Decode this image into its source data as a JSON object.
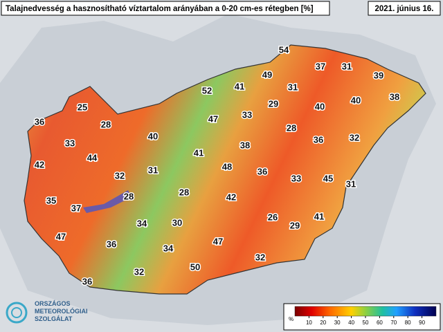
{
  "title": "Talajnedvesség a hasznosítható víztartalom arányában a 0-20 cm-es rétegben [%]",
  "date": "2021. június 16.",
  "stations": [
    54,
    37,
    31,
    39,
    49,
    41,
    31,
    52,
    40,
    38,
    29,
    40,
    25,
    33,
    47,
    36,
    28,
    28,
    40,
    36,
    32,
    33,
    38,
    41,
    44,
    42,
    48,
    31,
    32,
    36,
    33,
    45,
    31,
    28,
    42,
    35,
    28,
    37,
    26,
    41,
    29,
    34,
    30,
    47,
    36,
    47,
    34,
    32,
    50,
    32,
    36
  ],
  "colorbar": {
    "unit": "%",
    "lim": [
      0,
      100
    ],
    "ticks": [
      10,
      20,
      30,
      40,
      50,
      60,
      70,
      80,
      90
    ]
  },
  "logo": {
    "line1": "ORSZÁGOS",
    "line2": "METEOROLÓGIAI",
    "line3": "SZOLGÁLAT"
  }
}
